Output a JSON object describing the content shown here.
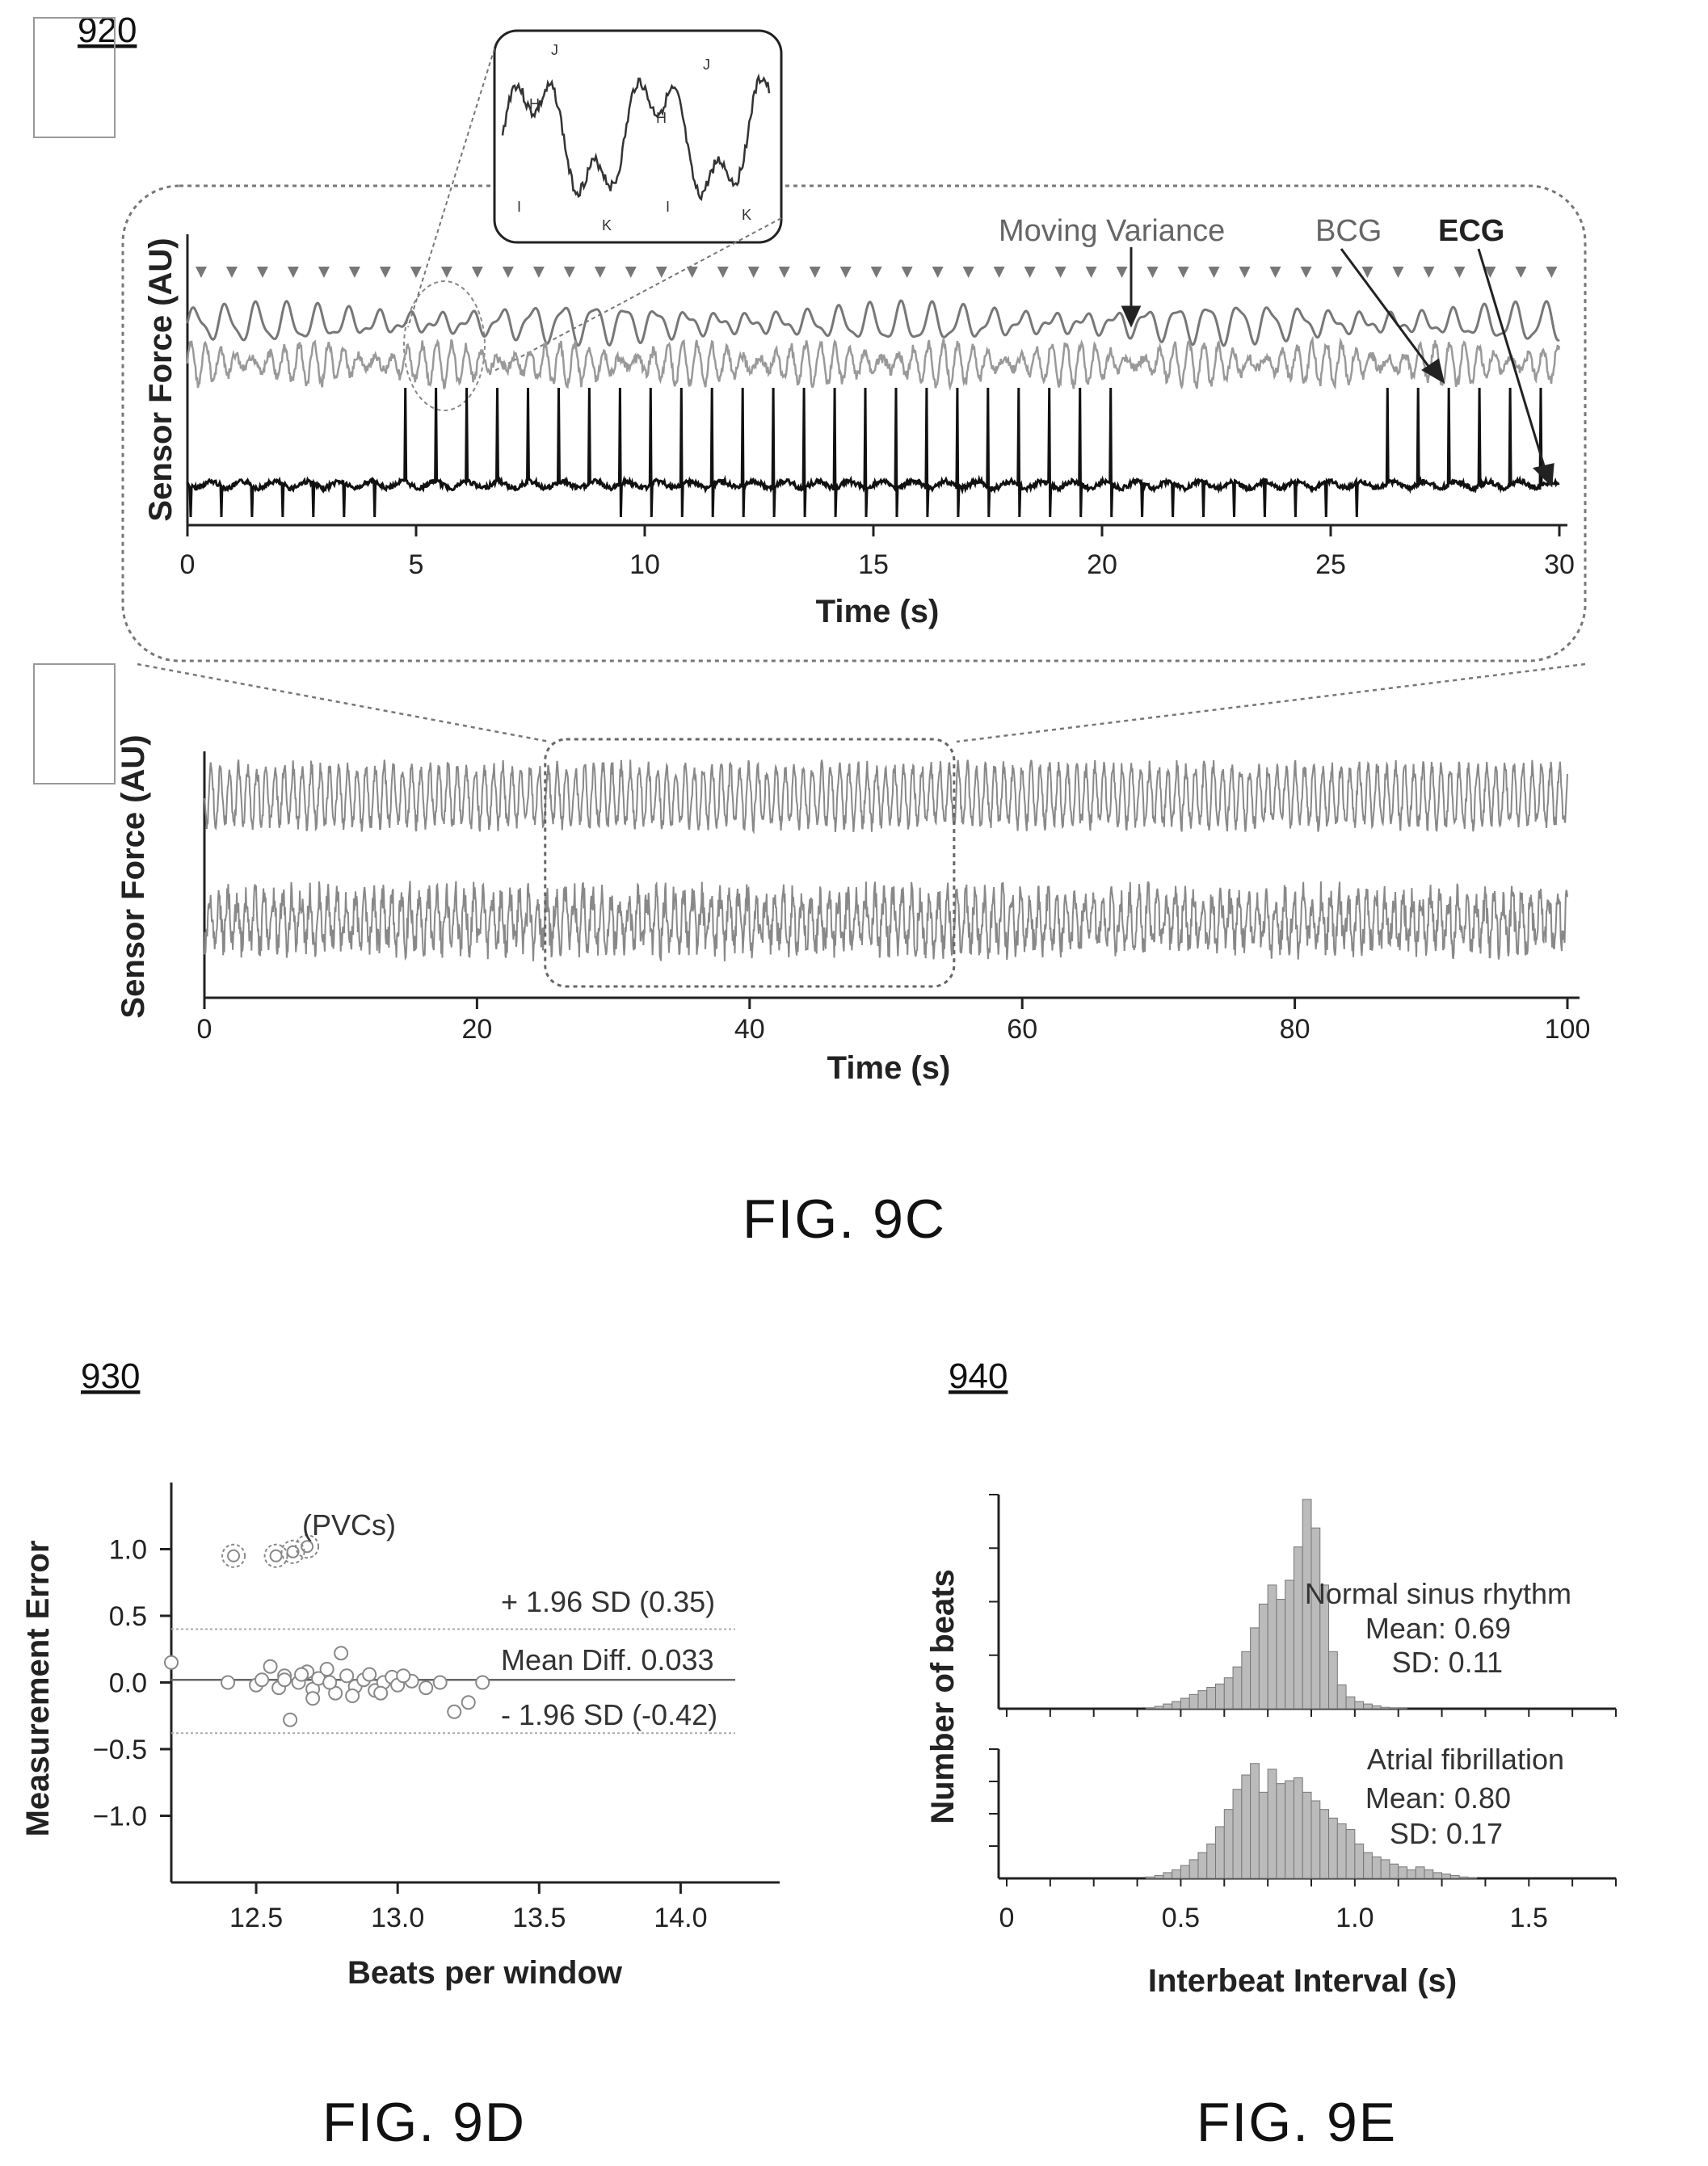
{
  "figure_refs": {
    "fig9c": "920",
    "fig9d": "930",
    "fig9e": "940"
  },
  "captions": {
    "fig9c": "FIG. 9C",
    "fig9d": "FIG. 9D",
    "fig9e": "FIG. 9E"
  },
  "chart_data": [
    {
      "id": "9c-zoom",
      "type": "line",
      "ylabel": "Sensor Force (AU)",
      "xlabel": "Time (s)",
      "xlim": [
        0,
        30
      ],
      "xticks": [
        0,
        5,
        10,
        15,
        20,
        25,
        30
      ],
      "series": [
        {
          "name": "Moving Variance"
        },
        {
          "name": "BCG"
        },
        {
          "name": "ECG"
        }
      ],
      "beat_rate_per_s": 1.49,
      "inset_wave_labels": [
        "H",
        "I",
        "J",
        "K",
        "H",
        "I",
        "J",
        "K"
      ]
    },
    {
      "id": "9c-full",
      "type": "line",
      "ylabel": "Sensor Force (AU)",
      "xlabel": "Time (s)",
      "xlim": [
        0,
        100
      ],
      "xticks": [
        0,
        20,
        40,
        60,
        80,
        100
      ],
      "zoom_window": [
        25,
        55
      ]
    },
    {
      "id": "9d",
      "type": "scatter",
      "ylabel": "Measurement Error",
      "xlabel": "Beats per window",
      "xlim": [
        12.2,
        14.35
      ],
      "ylim": [
        -1.5,
        1.5
      ],
      "xticks": [
        "12.5",
        "13.0",
        "13.5",
        "14.0"
      ],
      "yticks": [
        "1.0",
        "0.5",
        "0.0",
        "−0.5",
        "−1.0"
      ],
      "ytick_values": [
        1.0,
        0.5,
        0.0,
        -0.5,
        -1.0
      ],
      "reference_lines": [
        {
          "label": "+ 1.96 SD (0.35)",
          "value": 0.4
        },
        {
          "label": "Mean Diff. 0.033",
          "value": 0.02
        },
        {
          "label": "- 1.96 SD (-0.42)",
          "value": -0.38
        }
      ],
      "annotation": "(PVCs)",
      "points": [
        [
          12.2,
          0.15
        ],
        [
          12.4,
          0.0
        ],
        [
          12.5,
          -0.02
        ],
        [
          12.52,
          0.02
        ],
        [
          12.55,
          0.12
        ],
        [
          12.58,
          -0.04
        ],
        [
          12.6,
          0.05
        ],
        [
          12.62,
          -0.28
        ],
        [
          12.65,
          0.0
        ],
        [
          12.68,
          0.08
        ],
        [
          12.7,
          -0.05
        ],
        [
          12.72,
          0.03
        ],
        [
          12.75,
          0.1
        ],
        [
          12.78,
          -0.08
        ],
        [
          12.8,
          0.22
        ],
        [
          12.82,
          0.05
        ],
        [
          12.85,
          -0.03
        ],
        [
          12.88,
          0.02
        ],
        [
          12.9,
          0.06
        ],
        [
          12.92,
          -0.06
        ],
        [
          12.95,
          0.0
        ],
        [
          12.98,
          0.04
        ],
        [
          13.0,
          -0.02
        ],
        [
          13.05,
          0.01
        ],
        [
          13.1,
          -0.04
        ],
        [
          13.15,
          0.0
        ],
        [
          13.2,
          -0.22
        ],
        [
          13.25,
          -0.15
        ],
        [
          13.3,
          0.0
        ],
        [
          12.7,
          -0.12
        ],
        [
          12.76,
          0.0
        ],
        [
          12.84,
          -0.1
        ],
        [
          12.6,
          0.02
        ],
        [
          12.66,
          0.06
        ],
        [
          12.94,
          -0.08
        ],
        [
          13.02,
          0.05
        ]
      ],
      "pvc_points": [
        [
          12.42,
          0.95
        ],
        [
          12.57,
          0.95
        ],
        [
          12.63,
          0.98
        ],
        [
          12.68,
          1.02
        ]
      ]
    },
    {
      "id": "9e",
      "type": "bar",
      "ylabel": "Number of beats",
      "xlabel": "Interbeat Interval (s)",
      "xlim": [
        0,
        1.75
      ],
      "xticks": [
        "0",
        "0.5",
        "1.0",
        "1.5"
      ],
      "series": [
        {
          "panel": "top",
          "annotations": [
            "Normal sinus rhythm",
            "Mean: 0.69",
            "SD: 0.11"
          ],
          "bin_width": 0.025,
          "bins_start": 0.4,
          "values": [
            0.2,
            0.5,
            1.0,
            1.5,
            2.2,
            3.0,
            3.8,
            4.5,
            5.2,
            6.5,
            8.8,
            12.0,
            17.0,
            22.0,
            26.0,
            23.0,
            27.0,
            34.0,
            44.0,
            38.0,
            26.0,
            12.0,
            5.0,
            2.5,
            1.5,
            1.0,
            0.6,
            0.3,
            0.2,
            0.1
          ],
          "ymax": 45
        },
        {
          "panel": "bottom",
          "annotations": [
            "Atrial fibrillation",
            "Mean: 0.80",
            "SD: 0.17"
          ],
          "bin_width": 0.025,
          "bins_start": 0.4,
          "values": [
            0.5,
            1.0,
            2.0,
            3.0,
            4.5,
            6.5,
            9.0,
            12.0,
            18.0,
            24.0,
            31.0,
            36.0,
            40.0,
            30.0,
            38.0,
            33.0,
            34.0,
            35.0,
            30.0,
            27.0,
            24.0,
            21.0,
            19.0,
            17.0,
            12.0,
            9.0,
            7.5,
            6.5,
            5.0,
            4.0,
            3.0,
            4.0,
            3.0,
            2.0,
            1.5,
            1.0,
            0.5,
            0.3
          ],
          "ymax": 45
        }
      ]
    }
  ]
}
